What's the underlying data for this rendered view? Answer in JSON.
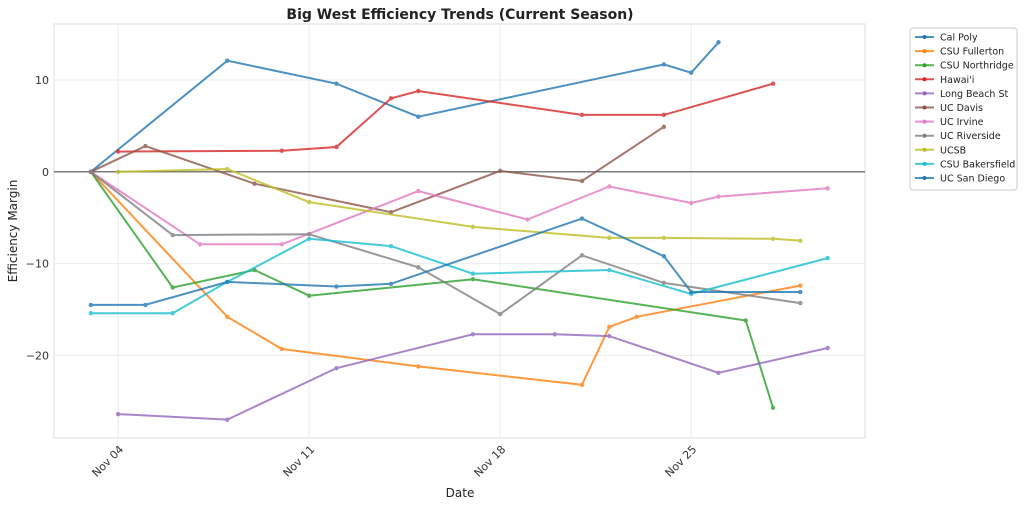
{
  "chart_data": {
    "type": "line",
    "title": "Big West Efficiency Trends (Current Season)",
    "xlabel": "Date",
    "ylabel": "Efficiency Margin",
    "x_unit": "day of November",
    "xlim": [
      1.65,
      31.37
    ],
    "ylim": [
      -29.0,
      16.1
    ],
    "xticks": [
      {
        "value": 4,
        "label": "Nov 04"
      },
      {
        "value": 11,
        "label": "Nov 11"
      },
      {
        "value": 18,
        "label": "Nov 18"
      },
      {
        "value": 25,
        "label": "Nov 25"
      }
    ],
    "yticks": [
      {
        "value": 10,
        "label": "10"
      },
      {
        "value": 0,
        "label": "0"
      },
      {
        "value": -10,
        "label": "−10"
      },
      {
        "value": -20,
        "label": "−20"
      }
    ],
    "grid": true,
    "reference_line": 0,
    "legend_position": "outside-top-right",
    "series": [
      {
        "name": "Cal Poly",
        "color": "#1f77b4",
        "x": [
          3,
          8,
          12,
          15,
          24,
          25,
          26
        ],
        "y": [
          0,
          12.1,
          9.6,
          6.0,
          11.7,
          10.8,
          14.1
        ]
      },
      {
        "name": "CSU Fullerton",
        "color": "#ff7f0e",
        "x": [
          3,
          8,
          10,
          15,
          21,
          22,
          23,
          29
        ],
        "y": [
          0,
          -15.8,
          -19.3,
          -21.2,
          -23.2,
          -16.9,
          -15.8,
          -12.4
        ]
      },
      {
        "name": "CSU Northridge",
        "color": "#2ca02c",
        "x": [
          3,
          6,
          9,
          11,
          17,
          27,
          28
        ],
        "y": [
          0,
          -12.6,
          -10.7,
          -13.5,
          -11.7,
          -16.2,
          -25.7
        ]
      },
      {
        "name": "Hawai'i",
        "color": "#d62728",
        "x": [
          4,
          10,
          12,
          14,
          15,
          21,
          24,
          28
        ],
        "y": [
          2.2,
          2.3,
          2.7,
          8.0,
          8.8,
          6.2,
          6.2,
          9.6
        ]
      },
      {
        "name": "Long Beach St",
        "color": "#9467bd",
        "x": [
          4,
          8,
          12,
          17,
          20,
          22,
          26,
          30
        ],
        "y": [
          -26.4,
          -27.0,
          -21.4,
          -17.7,
          -17.7,
          -17.9,
          -21.9,
          -19.2
        ]
      },
      {
        "name": "UC Davis",
        "color": "#8c564b",
        "x": [
          3,
          5,
          9,
          14,
          18,
          21,
          24
        ],
        "y": [
          0,
          2.8,
          -1.3,
          -4.4,
          0.1,
          -1.0,
          4.9
        ]
      },
      {
        "name": "UC Irvine",
        "color": "#e377c2",
        "x": [
          3,
          7,
          10,
          15,
          19,
          22,
          25,
          26,
          30
        ],
        "y": [
          0,
          -7.9,
          -7.9,
          -2.1,
          -5.2,
          -1.6,
          -3.4,
          -2.7,
          -1.8
        ]
      },
      {
        "name": "UC Riverside",
        "color": "#7f7f7f",
        "x": [
          3,
          6,
          11,
          15,
          18,
          21,
          24,
          29
        ],
        "y": [
          0,
          -6.9,
          -6.8,
          -10.4,
          -15.5,
          -9.1,
          -12.1,
          -14.3
        ]
      },
      {
        "name": "UCSB",
        "color": "#bcbd22",
        "x": [
          4,
          8,
          11,
          17,
          22,
          24,
          28,
          29
        ],
        "y": [
          0,
          0.3,
          -3.3,
          -6.0,
          -7.2,
          -7.2,
          -7.3,
          -7.5
        ]
      },
      {
        "name": "CSU Bakersfield",
        "color": "#17becf",
        "x": [
          3,
          6,
          8,
          11,
          14,
          17,
          22,
          25,
          30
        ],
        "y": [
          -15.4,
          -15.4,
          -12.0,
          -7.3,
          -8.1,
          -11.1,
          -10.7,
          -13.3,
          -9.4
        ]
      },
      {
        "name": "UC San Diego",
        "color": "#1f77b4",
        "x": [
          3,
          5,
          8,
          12,
          14,
          21,
          24,
          25,
          29
        ],
        "y": [
          -14.5,
          -14.5,
          -12.0,
          -12.5,
          -12.2,
          -5.1,
          -9.2,
          -13.1,
          -13.1
        ]
      }
    ]
  }
}
